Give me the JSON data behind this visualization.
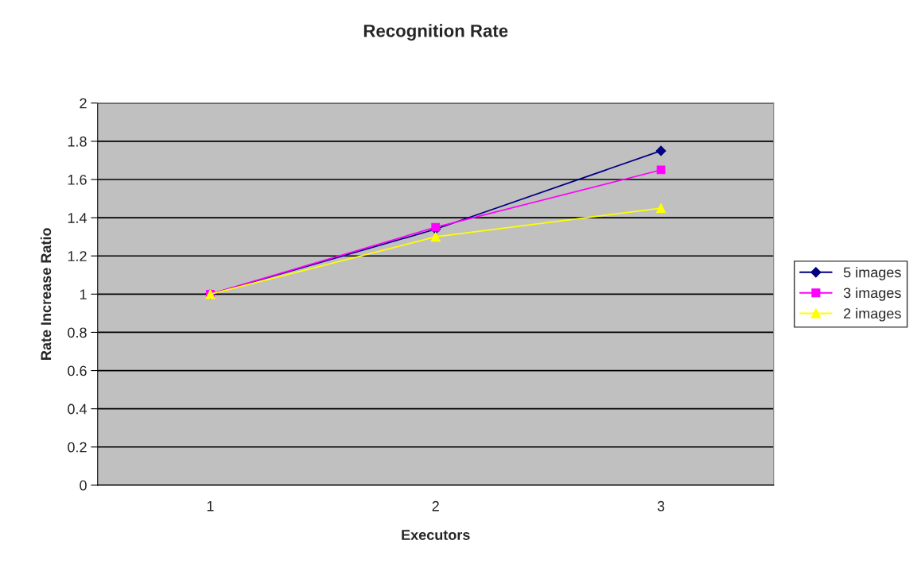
{
  "chart_data": {
    "type": "line",
    "title": "Recognition Rate",
    "xlabel": "Executors",
    "ylabel": "Rate Increase Ratio",
    "categories": [
      "1",
      "2",
      "3"
    ],
    "series": [
      {
        "name": "5 images",
        "color": "#000080",
        "marker": "diamond",
        "values": [
          1,
          1.34,
          1.75
        ]
      },
      {
        "name": "3 images",
        "color": "#ff00ff",
        "marker": "square",
        "values": [
          1,
          1.35,
          1.65
        ]
      },
      {
        "name": "2 images",
        "color": "#ffff00",
        "marker": "triangle",
        "values": [
          1,
          1.3,
          1.45
        ]
      }
    ],
    "ylim": [
      0,
      2
    ],
    "yticks": [
      0,
      0.2,
      0.4,
      0.6,
      0.8,
      1,
      1.2,
      1.4,
      1.6,
      1.8,
      2
    ],
    "grid": "y",
    "legend": "right"
  }
}
